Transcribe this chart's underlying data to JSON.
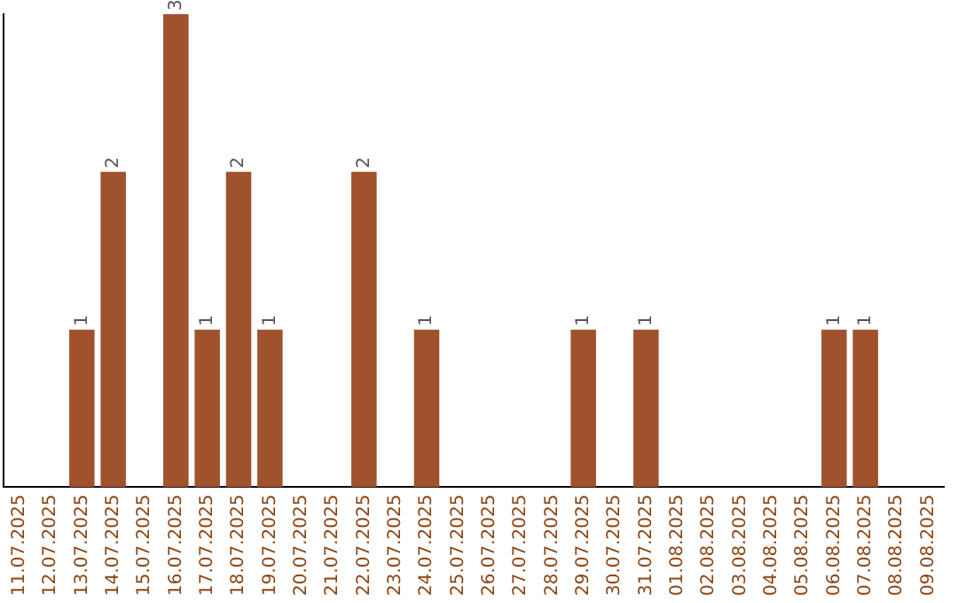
{
  "chart_data": {
    "type": "bar",
    "categories": [
      "11.07.2025",
      "12.07.2025",
      "13.07.2025",
      "14.07.2025",
      "15.07.2025",
      "16.07.2025",
      "17.07.2025",
      "18.07.2025",
      "19.07.2025",
      "20.07.2025",
      "21.07.2025",
      "22.07.2025",
      "23.07.2025",
      "24.07.2025",
      "25.07.2025",
      "26.07.2025",
      "27.07.2025",
      "28.07.2025",
      "29.07.2025",
      "30.07.2025",
      "31.07.2025",
      "01.08.2025",
      "02.08.2025",
      "03.08.2025",
      "04.08.2025",
      "05.08.2025",
      "06.08.2025",
      "07.08.2025",
      "08.08.2025",
      "09.08.2025"
    ],
    "values": [
      0,
      0,
      1,
      2,
      0,
      3,
      1,
      2,
      1,
      0,
      0,
      2,
      0,
      1,
      0,
      0,
      0,
      0,
      1,
      0,
      1,
      0,
      0,
      0,
      0,
      0,
      1,
      1,
      0,
      0
    ],
    "value_labels": [
      null,
      null,
      "1",
      "2",
      null,
      "3",
      "1",
      "2",
      "1",
      null,
      null,
      "2",
      null,
      "1",
      null,
      null,
      null,
      null,
      "1",
      null,
      "1",
      null,
      null,
      null,
      null,
      null,
      "1",
      "1",
      null,
      null
    ],
    "color": "#a0522d",
    "grid": false,
    "legend": false,
    "tick_labels": "x"
  }
}
